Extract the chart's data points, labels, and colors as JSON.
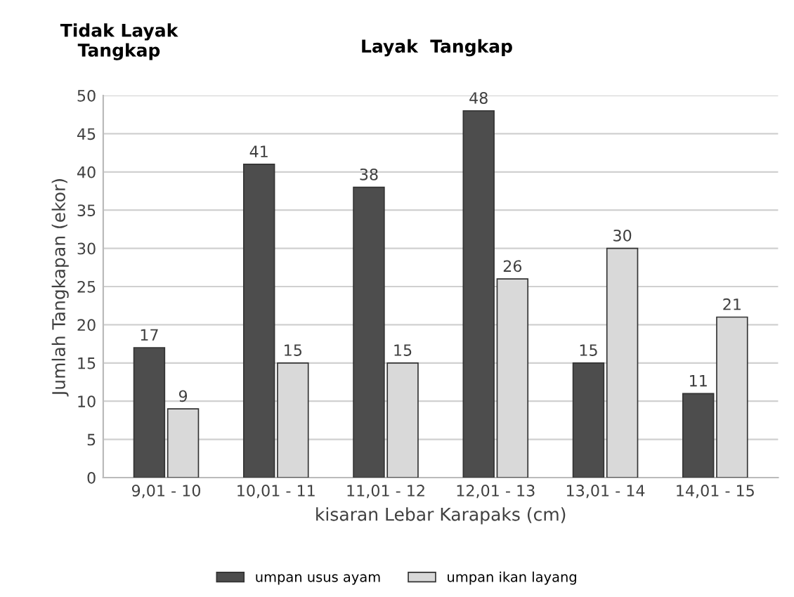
{
  "chart_data": {
    "type": "bar",
    "xlabel": "kisaran Lebar Karapaks (cm)",
    "ylabel": "Jumlah Tangkapan (ekor)",
    "categories": [
      "9,01 - 10",
      "10,01 - 11",
      "11,01 - 12",
      "12,01 - 13",
      "13,01 - 14",
      "14,01 - 15"
    ],
    "series": [
      {
        "name": "umpan usus ayam",
        "color": "#4d4d4d",
        "values": [
          17,
          41,
          38,
          48,
          15,
          11
        ]
      },
      {
        "name": "umpan ikan layang",
        "color": "#d9d9d9",
        "values": [
          9,
          15,
          15,
          26,
          30,
          21
        ]
      }
    ],
    "ylim": [
      0,
      50
    ],
    "yticks": [
      0,
      5,
      10,
      15,
      20,
      25,
      30,
      35,
      40,
      45,
      50
    ],
    "grid": "y",
    "legend": "bottom",
    "data_labels": true,
    "annotations": [
      "Tidak Layak\nTangkap",
      "Layak  Tangkap"
    ]
  }
}
